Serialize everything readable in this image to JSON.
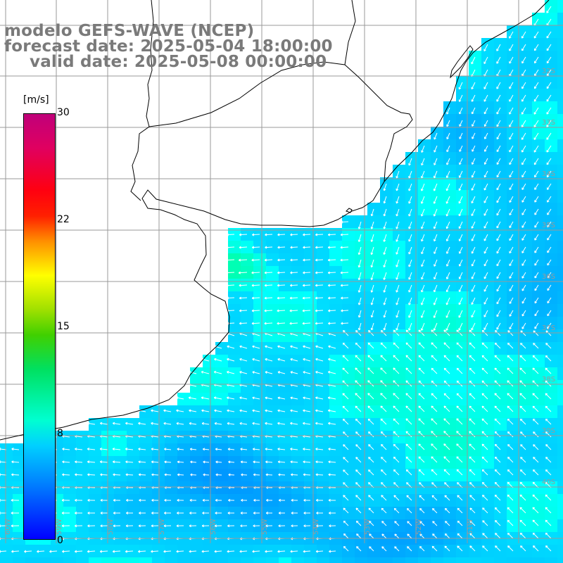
{
  "title": {
    "model": "modelo GEFS-WAVE (NCEP)",
    "forecast": "forecast date: 2025-05-04 18:00:00",
    "valid": "valid date: 2025-05-08 00:00:00"
  },
  "colorbar": {
    "unit": "[m/s]",
    "ticks": [
      "30",
      "22",
      "15",
      "8",
      "0"
    ],
    "min": 0,
    "max": 30,
    "colors": [
      "#0000ff",
      "#0080ff",
      "#00ffd0",
      "#40d000",
      "#ffff00",
      "#ff9000",
      "#ff0010",
      "#c0007a"
    ]
  },
  "lat_labels": [
    "32S",
    "33S",
    "34S",
    "35S",
    "36S",
    "37S",
    "38S",
    "39S",
    "40S"
  ],
  "lon_labels": [
    "60W",
    "59W",
    "58W",
    "57W",
    "56W",
    "55W",
    "54W",
    "53W",
    "52W",
    "51W"
  ],
  "map": {
    "land_color": "#ffffff",
    "coast_color": "#000000",
    "grid_color": "#a0a0a0",
    "arrow_color": "#ffffff"
  }
}
